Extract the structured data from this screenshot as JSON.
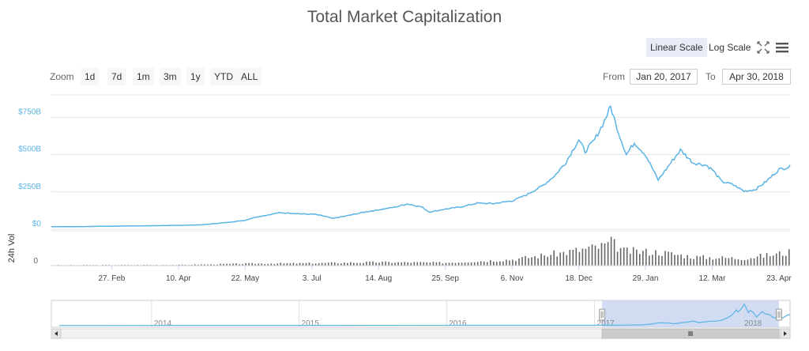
{
  "header": {
    "title": "Total Market Capitalization"
  },
  "scale_controls": {
    "linear_label": "Linear Scale",
    "log_label": "Log Scale"
  },
  "icons": {
    "fullscreen": "fullscreen-icon",
    "menu": "menu-icon"
  },
  "range_selector": {
    "zoom_label": "Zoom",
    "buttons": [
      "1d",
      "7d",
      "1m",
      "3m",
      "1y",
      "YTD",
      "ALL"
    ],
    "from_label": "From",
    "from_value": "Jan 20, 2017",
    "to_label": "To",
    "to_value": "Apr 30, 2018"
  },
  "colors": {
    "line": "#5ab4e5",
    "volume": "#666666",
    "navigator_mask": "#c9d6f0",
    "grid": "#e6e6e6"
  },
  "chart_data": {
    "type": "line",
    "title": "Total Market Capitalization",
    "x_range": [
      "2017-01-20",
      "2018-04-30"
    ],
    "x_ticks": [
      "27. Feb",
      "10. Apr",
      "22. May",
      "3. Jul",
      "14. Aug",
      "25. Sep",
      "6. Nov",
      "18. Dec",
      "29. Jan",
      "12. Mar",
      "23. Apr"
    ],
    "y_ticks": [
      "$0",
      "$250B",
      "$500B",
      "$750B"
    ],
    "ylim": [
      0,
      900
    ],
    "series": [
      {
        "unit": "B USD",
        "points": [
          [
            "2017-01-20",
            17
          ],
          [
            "2017-02-10",
            18
          ],
          [
            "2017-03-01",
            21
          ],
          [
            "2017-03-20",
            23
          ],
          [
            "2017-04-10",
            26
          ],
          [
            "2017-04-25",
            30
          ],
          [
            "2017-05-10",
            45
          ],
          [
            "2017-05-22",
            60
          ],
          [
            "2017-05-28",
            80
          ],
          [
            "2017-06-05",
            95
          ],
          [
            "2017-06-12",
            110
          ],
          [
            "2017-06-20",
            108
          ],
          [
            "2017-06-28",
            102
          ],
          [
            "2017-07-05",
            100
          ],
          [
            "2017-07-12",
            85
          ],
          [
            "2017-07-16",
            72
          ],
          [
            "2017-07-25",
            90
          ],
          [
            "2017-08-05",
            115
          ],
          [
            "2017-08-14",
            130
          ],
          [
            "2017-08-25",
            150
          ],
          [
            "2017-09-01",
            170
          ],
          [
            "2017-09-10",
            150
          ],
          [
            "2017-09-15",
            115
          ],
          [
            "2017-09-25",
            135
          ],
          [
            "2017-10-05",
            150
          ],
          [
            "2017-10-15",
            175
          ],
          [
            "2017-10-25",
            172
          ],
          [
            "2017-11-06",
            190
          ],
          [
            "2017-11-15",
            230
          ],
          [
            "2017-11-25",
            290
          ],
          [
            "2017-12-03",
            360
          ],
          [
            "2017-12-10",
            450
          ],
          [
            "2017-12-18",
            600
          ],
          [
            "2017-12-22",
            520
          ],
          [
            "2017-12-28",
            600
          ],
          [
            "2018-01-02",
            700
          ],
          [
            "2018-01-07",
            820
          ],
          [
            "2018-01-12",
            650
          ],
          [
            "2018-01-17",
            500
          ],
          [
            "2018-01-22",
            580
          ],
          [
            "2018-01-29",
            500
          ],
          [
            "2018-02-06",
            330
          ],
          [
            "2018-02-15",
            460
          ],
          [
            "2018-02-20",
            530
          ],
          [
            "2018-02-28",
            445
          ],
          [
            "2018-03-08",
            430
          ],
          [
            "2018-03-12",
            400
          ],
          [
            "2018-03-18",
            320
          ],
          [
            "2018-03-25",
            300
          ],
          [
            "2018-04-01",
            255
          ],
          [
            "2018-04-08",
            265
          ],
          [
            "2018-04-15",
            320
          ],
          [
            "2018-04-23",
            400
          ],
          [
            "2018-04-30",
            420
          ]
        ]
      }
    ],
    "volume": {
      "label": "24h Vol",
      "y_ticks": [
        "0"
      ],
      "points": [
        [
          "2017-01-20",
          0.02
        ],
        [
          "2017-04-10",
          0.03
        ],
        [
          "2017-05-22",
          0.08
        ],
        [
          "2017-07-03",
          0.1
        ],
        [
          "2017-08-14",
          0.14
        ],
        [
          "2017-09-25",
          0.12
        ],
        [
          "2017-11-06",
          0.25
        ],
        [
          "2017-12-10",
          0.55
        ],
        [
          "2018-01-02",
          0.8
        ],
        [
          "2018-01-07",
          0.95
        ],
        [
          "2018-01-15",
          0.6
        ],
        [
          "2018-02-06",
          0.55
        ],
        [
          "2018-03-01",
          0.35
        ],
        [
          "2018-04-01",
          0.3
        ],
        [
          "2018-04-30",
          0.55
        ]
      ]
    },
    "navigator": {
      "x_ticks": [
        "2014",
        "2015",
        "2016",
        "2017",
        "2018"
      ],
      "selected_range": [
        "2017-01-20",
        "2018-04-30"
      ]
    }
  }
}
